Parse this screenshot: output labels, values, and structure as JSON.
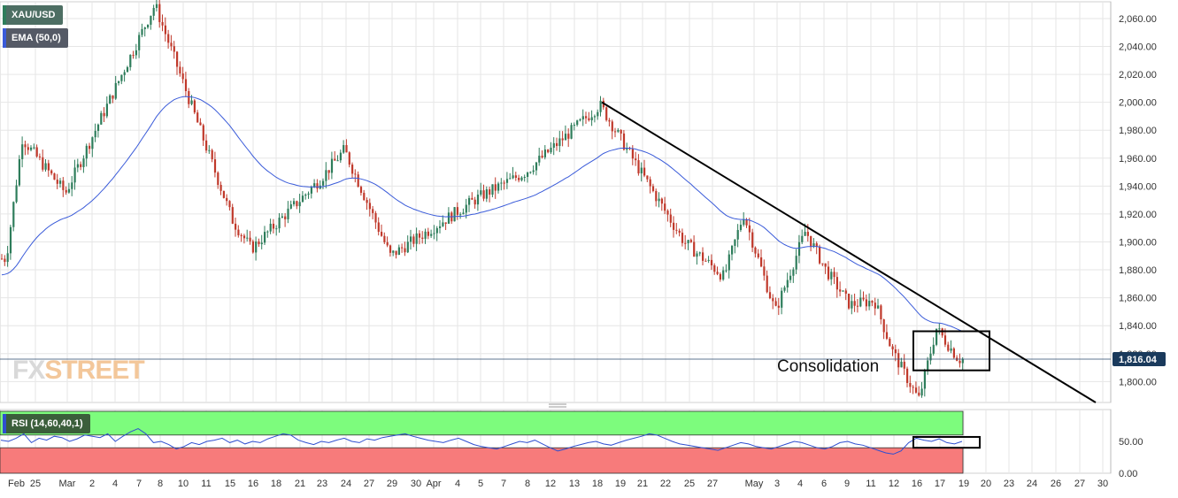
{
  "legend": {
    "symbol": "XAU/USD",
    "ema_label": "EMA (50,0)",
    "rsi_label": "RSI (14,60,40,1)"
  },
  "watermark": {
    "part1": "FX",
    "part2": "STREET"
  },
  "colors": {
    "up": "#2e7d5b",
    "down": "#c0392b",
    "ema": "#3a5bd9",
    "trendline": "#000000",
    "rsi_line": "#2f4fd0",
    "rsi_overbought_zone": "#7dfc7d",
    "rsi_oversold_zone": "#f77b7b",
    "price_tag": "#1a3a5c",
    "grid": "#e6e6e6"
  },
  "chart_data": [
    {
      "type": "candlestick",
      "panel": "price",
      "ylim": [
        1785,
        2072
      ],
      "y_ticks": [
        1800,
        1820,
        1840,
        1860,
        1880,
        1900,
        1920,
        1940,
        1960,
        1980,
        2000,
        2020,
        2040,
        2060
      ],
      "y_tick_labels": [
        "1,800.00",
        "1,820.00",
        "1,840.00",
        "1,860.00",
        "1,880.00",
        "1,900.00",
        "1,920.00",
        "1,940.00",
        "1,960.00",
        "1,980.00",
        "2,000.00",
        "2,020.00",
        "2,040.00",
        "2,060.00"
      ],
      "x_tick_labels": [
        "Feb",
        "25",
        "Mar",
        "2",
        "4",
        "7",
        "8",
        "10",
        "11",
        "15",
        "16",
        "18",
        "21",
        "23",
        "24",
        "27",
        "29",
        "30",
        "Apr",
        "4",
        "5",
        "7",
        "8",
        "12",
        "13",
        "18",
        "19",
        "21",
        "22",
        "25",
        "27",
        "May",
        "3",
        "4",
        "6",
        "9",
        "11",
        "12",
        "16",
        "17",
        "19",
        "20",
        "23",
        "24",
        "26",
        "27",
        "30"
      ],
      "current_price": 1816.04,
      "current_price_label": "1,816.04",
      "trendline": {
        "from": {
          "date": "Apr 18",
          "price": 2000
        },
        "to": {
          "date": "May 30",
          "price": 1785
        }
      },
      "annotation": {
        "text": "Consolidation",
        "box_from_date": "May 16",
        "box_to_date": "May 19",
        "box_price_range": [
          1808,
          1836
        ]
      },
      "key_levels": [
        {
          "date": "Feb 22",
          "price": 1888
        },
        {
          "date": "Feb 24",
          "price": 1974
        },
        {
          "date": "Mar 1",
          "price": 1935
        },
        {
          "date": "Mar 8",
          "price": 2070
        },
        {
          "date": "Mar 15",
          "price": 1915
        },
        {
          "date": "Mar 16",
          "price": 1895
        },
        {
          "date": "Mar 23",
          "price": 1945
        },
        {
          "date": "Mar 24",
          "price": 1966
        },
        {
          "date": "Mar 29",
          "price": 1890
        },
        {
          "date": "Apr 5",
          "price": 1932
        },
        {
          "date": "Apr 8",
          "price": 1950
        },
        {
          "date": "Apr 18",
          "price": 1998
        },
        {
          "date": "Apr 21",
          "price": 1950
        },
        {
          "date": "Apr 25",
          "price": 1900
        },
        {
          "date": "Apr 27",
          "price": 1875
        },
        {
          "date": "Apr 29",
          "price": 1920
        },
        {
          "date": "May 2",
          "price": 1850
        },
        {
          "date": "May 4",
          "price": 1908
        },
        {
          "date": "May 6",
          "price": 1880
        },
        {
          "date": "May 9",
          "price": 1855
        },
        {
          "date": "May 11",
          "price": 1858
        },
        {
          "date": "May 12",
          "price": 1822
        },
        {
          "date": "May 16",
          "price": 1787
        },
        {
          "date": "May 17",
          "price": 1838
        },
        {
          "date": "May 19",
          "price": 1816
        }
      ]
    },
    {
      "type": "line",
      "panel": "rsi",
      "name": "RSI (14,60,40,1)",
      "ylim": [
        0,
        100
      ],
      "y_ticks": [
        0,
        50
      ],
      "y_tick_labels": [
        "0.00",
        "50.00"
      ],
      "overbought": 60,
      "oversold": 40,
      "annotation": {
        "box_from_date": "May 16",
        "box_to_date": "May 19",
        "box_value_range": [
          40,
          57
        ]
      },
      "values": [
        52,
        50,
        55,
        62,
        48,
        55,
        52,
        58,
        56,
        50,
        54,
        60,
        58,
        56,
        62,
        50,
        58,
        65,
        70,
        62,
        48,
        50,
        45,
        38,
        42,
        48,
        45,
        50,
        52,
        55,
        48,
        52,
        46,
        50,
        48,
        54,
        58,
        62,
        60,
        52,
        48,
        45,
        50,
        48,
        52,
        55,
        50,
        48,
        54,
        52,
        56,
        58,
        60,
        62,
        58,
        55,
        52,
        50,
        48,
        52,
        55,
        50,
        45,
        42,
        40,
        38,
        42,
        46,
        50,
        48,
        52,
        46,
        40,
        35,
        38,
        42,
        45,
        48,
        50,
        46,
        44,
        48,
        52,
        55,
        58,
        62,
        60,
        55,
        50,
        46,
        44,
        42,
        40,
        38,
        36,
        40,
        44,
        48,
        46,
        42,
        40,
        38,
        42,
        46,
        50,
        48,
        44,
        40,
        38,
        42,
        48,
        50,
        46,
        44,
        40,
        36,
        32,
        30,
        35,
        48,
        55,
        52,
        50,
        54,
        48,
        46,
        50
      ]
    }
  ]
}
